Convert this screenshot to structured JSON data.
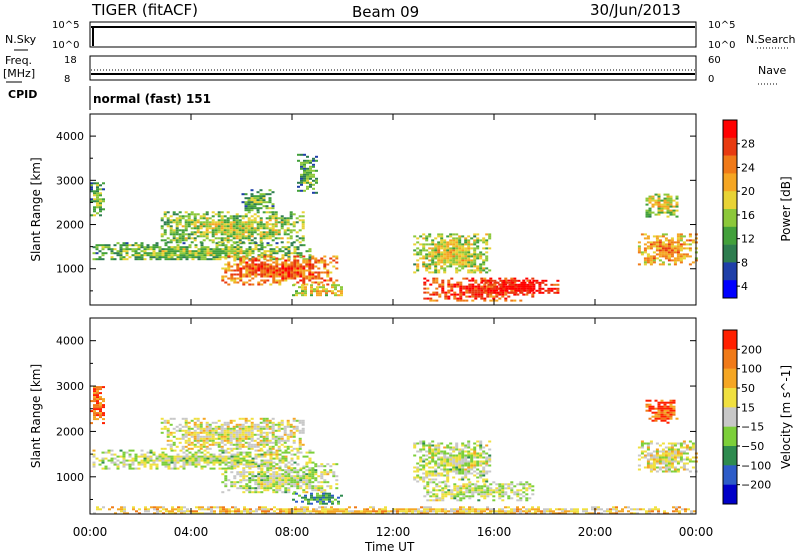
{
  "header": {
    "station": "TIGER (fitACF)",
    "beam": "Beam 09",
    "date": "30/Jun/2013"
  },
  "status_panels": {
    "nsky_label": "N.Sky",
    "nsky_ticks": [
      "10^5",
      "10^0"
    ],
    "nsearch_label": "N.Search",
    "nsearch_ticks": [
      "10^5",
      "10^0"
    ],
    "freq_label": "Freq.",
    "freq_unit": "[MHz]",
    "freq_ticks": [
      "18",
      "8"
    ],
    "nave_label": "Nave",
    "nave_ticks": [
      "60",
      "0"
    ],
    "cpid_label": "CPID",
    "cpid_value": "normal (fast) 151"
  },
  "chart_data": [
    {
      "type": "heatmap",
      "name": "power",
      "ylabel": "Slant Range [km]",
      "yticks": [
        "4000",
        "3000",
        "2000",
        "1000"
      ],
      "ylim": [
        180,
        4500
      ],
      "xlim": [
        0,
        24
      ],
      "colorbar": {
        "label": "Power [dB]",
        "ticks": [
          "28",
          "24",
          "20",
          "16",
          "12",
          "8",
          "4"
        ],
        "range": [
          0,
          30
        ],
        "colors": [
          "#0000ff",
          "#1f3fa8",
          "#2e7d4f",
          "#42a03b",
          "#8cc83a",
          "#e8d335",
          "#f5a623",
          "#f07a18",
          "#e83a10",
          "#ff0000"
        ]
      },
      "regions": [
        {
          "t0": 0.1,
          "t1": 8.8,
          "r0": 1200,
          "r1": 1600,
          "level": 0.35
        },
        {
          "t0": 2.8,
          "t1": 8.4,
          "r0": 1600,
          "r1": 2300,
          "level": 0.4
        },
        {
          "t0": 5.2,
          "t1": 9.8,
          "r0": 650,
          "r1": 1300,
          "level": 0.7
        },
        {
          "t0": 8.0,
          "t1": 10.0,
          "r0": 400,
          "r1": 650,
          "level": 0.5
        },
        {
          "t0": 12.8,
          "t1": 15.8,
          "r0": 900,
          "r1": 1800,
          "level": 0.45
        },
        {
          "t0": 13.2,
          "t1": 17.5,
          "r0": 300,
          "r1": 800,
          "level": 0.8
        },
        {
          "t0": 15.5,
          "t1": 18.5,
          "r0": 450,
          "r1": 750,
          "level": 0.9
        },
        {
          "t0": 21.7,
          "t1": 24.0,
          "r0": 1100,
          "r1": 1800,
          "level": 0.6
        },
        {
          "t0": 22.0,
          "t1": 23.3,
          "r0": 2200,
          "r1": 2700,
          "level": 0.45
        },
        {
          "t0": 6.0,
          "t1": 7.2,
          "r0": 2300,
          "r1": 2800,
          "level": 0.3
        },
        {
          "t0": 0.0,
          "t1": 0.5,
          "r0": 2200,
          "r1": 3000,
          "level": 0.35
        },
        {
          "t0": 8.2,
          "t1": 9.0,
          "r0": 2700,
          "r1": 3600,
          "level": 0.25
        }
      ]
    },
    {
      "type": "heatmap",
      "name": "velocity",
      "ylabel": "Slant Range [km]",
      "yticks": [
        "4000",
        "3000",
        "2000",
        "1000"
      ],
      "ylim": [
        180,
        4500
      ],
      "xlim": [
        0,
        24
      ],
      "colorbar": {
        "label": "Velocity [m s^-1]",
        "ticks": [
          "200",
          "100",
          "50",
          "15",
          "−15",
          "−50",
          "−100",
          "−200"
        ],
        "range": [
          -250,
          250
        ],
        "colors": [
          "#0000c8",
          "#2d5cc8",
          "#2e8b4f",
          "#7ccf3a",
          "#c8c8c8",
          "#f0e040",
          "#f5a623",
          "#f07a18",
          "#ff2000"
        ]
      },
      "regions": [
        {
          "t0": 0.1,
          "t1": 8.8,
          "r0": 1200,
          "r1": 1600,
          "level": 0.5
        },
        {
          "t0": 2.8,
          "t1": 8.4,
          "r0": 1600,
          "r1": 2300,
          "level": 0.55
        },
        {
          "t0": 5.2,
          "t1": 9.8,
          "r0": 650,
          "r1": 1300,
          "level": 0.5
        },
        {
          "t0": 8.0,
          "t1": 10.0,
          "r0": 400,
          "r1": 650,
          "level": 0.3
        },
        {
          "t0": 12.8,
          "t1": 15.8,
          "r0": 900,
          "r1": 1800,
          "level": 0.5
        },
        {
          "t0": 13.2,
          "t1": 17.5,
          "r0": 500,
          "r1": 900,
          "level": 0.5
        },
        {
          "t0": 21.7,
          "t1": 24.0,
          "r0": 1100,
          "r1": 1800,
          "level": 0.55
        },
        {
          "t0": 22.0,
          "t1": 23.3,
          "r0": 2200,
          "r1": 2700,
          "level": 0.9
        },
        {
          "t0": 0.0,
          "t1": 0.5,
          "r0": 2200,
          "r1": 3000,
          "level": 0.85
        },
        {
          "t0": 0.0,
          "t1": 24.0,
          "r0": 180,
          "r1": 350,
          "level": 0.65
        }
      ]
    }
  ],
  "x_axis": {
    "label": "Time UT",
    "ticks": [
      "00:00",
      "04:00",
      "08:00",
      "12:00",
      "16:00",
      "20:00",
      "00:00"
    ],
    "tick_hours": [
      0,
      4,
      8,
      12,
      16,
      20,
      24
    ]
  }
}
